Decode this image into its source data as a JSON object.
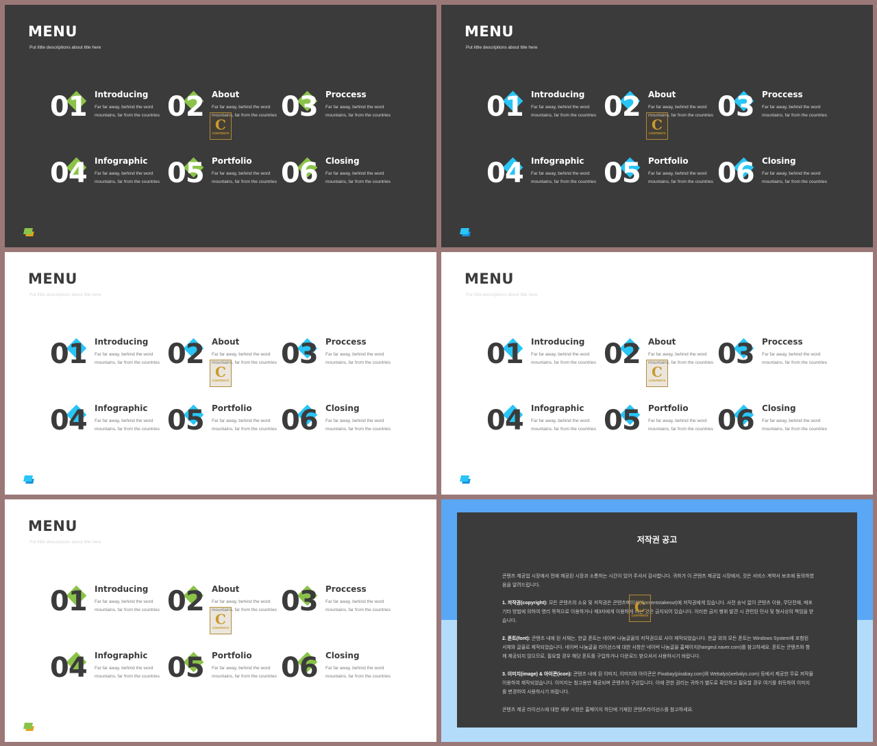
{
  "slides": [
    {
      "theme": "dark",
      "accent": "green",
      "title": "MENU",
      "subtitle": "Put little descriptions about title here",
      "items": [
        {
          "num": "01",
          "title": "Introducing",
          "desc": "Far far away, behind the word mountains, far from the countries"
        },
        {
          "num": "02",
          "title": "About",
          "desc": "Far far away, behind the word mountains, far from the countries"
        },
        {
          "num": "03",
          "title": "Proccess",
          "desc": "Far far away, behind the word mountains, far from the countries"
        },
        {
          "num": "04",
          "title": "Infographic",
          "desc": "Far far away, behind the word mountains, far from the countries"
        },
        {
          "num": "05",
          "title": "Portfolio",
          "desc": "Far far away, behind the word mountains, far from the countries"
        },
        {
          "num": "06",
          "title": "Closing",
          "desc": "Far far away, behind the word mountains, far from the countries"
        }
      ]
    },
    {
      "theme": "dark",
      "accent": "blue",
      "title": "MENU",
      "subtitle": "Put little descriptions about title here",
      "items": [
        {
          "num": "01",
          "title": "Introducing",
          "desc": "Far far away, behind the word mountains, far from the countries"
        },
        {
          "num": "02",
          "title": "About",
          "desc": "Far far away, behind the word mountains, far from the countries"
        },
        {
          "num": "03",
          "title": "Proccess",
          "desc": "Far far away, behind the word mountains, far from the countries"
        },
        {
          "num": "04",
          "title": "Infographic",
          "desc": "Far far away, behind the word mountains, far from the countries"
        },
        {
          "num": "05",
          "title": "Portfolio",
          "desc": "Far far away, behind the word mountains, far from the countries"
        },
        {
          "num": "06",
          "title": "Closing",
          "desc": "Far far away, behind the word mountains, far from the countries"
        }
      ]
    },
    {
      "theme": "light",
      "accent": "blue",
      "title": "MENU",
      "subtitle": "Put little descriptions about title here",
      "items": [
        {
          "num": "01",
          "title": "Introducing",
          "desc": "Far far away, behind the word mountains, far from the countries"
        },
        {
          "num": "02",
          "title": "About",
          "desc": "Far far away, behind the word mountains, far from the countries"
        },
        {
          "num": "03",
          "title": "Proccess",
          "desc": "Far far away, behind the word mountains, far from the countries"
        },
        {
          "num": "04",
          "title": "Infographic",
          "desc": "Far far away, behind the word mountains, far from the countries"
        },
        {
          "num": "05",
          "title": "Portfolio",
          "desc": "Far far away, behind the word mountains, far from the countries"
        },
        {
          "num": "06",
          "title": "Closing",
          "desc": "Far far away, behind the word mountains, far from the countries"
        }
      ]
    },
    {
      "theme": "light",
      "accent": "blue",
      "title": "MENU",
      "subtitle": "Put little descriptions about title here",
      "items": [
        {
          "num": "01",
          "title": "Introducing",
          "desc": "Far far away, behind the word mountains, far from the countries"
        },
        {
          "num": "02",
          "title": "About",
          "desc": "Far far away, behind the word mountains, far from the countries"
        },
        {
          "num": "03",
          "title": "Proccess",
          "desc": "Far far away, behind the word mountains, far from the countries"
        },
        {
          "num": "04",
          "title": "Infographic",
          "desc": "Far far away, behind the word mountains, far from the countries"
        },
        {
          "num": "05",
          "title": "Portfolio",
          "desc": "Far far away, behind the word mountains, far from the countries"
        },
        {
          "num": "06",
          "title": "Closing",
          "desc": "Far far away, behind the word mountains, far from the countries"
        }
      ]
    },
    {
      "theme": "light",
      "accent": "green",
      "title": "MENU",
      "subtitle": "Put little descriptions about title here",
      "items": [
        {
          "num": "01",
          "title": "Introducing",
          "desc": "Far far away, behind the word mountains, far from the countries"
        },
        {
          "num": "02",
          "title": "About",
          "desc": "Far far away, behind the word mountains, far from the countries"
        },
        {
          "num": "03",
          "title": "Proccess",
          "desc": "Far far away, behind the word mountains, far from the countries"
        },
        {
          "num": "04",
          "title": "Infographic",
          "desc": "Far far away, behind the word mountains, far from the countries"
        },
        {
          "num": "05",
          "title": "Portfolio",
          "desc": "Far far away, behind the word mountains, far from the countries"
        },
        {
          "num": "06",
          "title": "Closing",
          "desc": "Far far away, behind the word mountains, far from the countries"
        }
      ]
    }
  ],
  "watermark": {
    "letter": "C",
    "text": "CONTENTS"
  },
  "copyright": {
    "title": "저작권 공고",
    "intro": "콘텐츠 제공업 시장에서 전에 제공된 시장과 소통하는 시간이 있어 주셔서 감사합니다. 귀하가 이 콘텐츠 제공업 시장에서, 것은 서비스 계약서 보조에 동의하였음을 알려드립니다.",
    "p1_label": "1. 저작권(copyright):",
    "p1": "모든 콘텐츠의 소유 및 저작권은 콘텐츠메이커(Contentstakeout)에 저작권에게 있습니다. 사전 승낙 없이 콘텐츠 이용, 무단전재, 배포 기타 방법에 의하여 영리 목적으로 이용하거나 제3자에게 이용하게 하는 것은 금지되어 있습니다. 이러한 금지 행위 발견 시 관련된 민사 및 형사상의 책임을 받습니다.",
    "p2_label": "2. 폰트(font):",
    "p2": "콘텐츠 내에 된 서체는, 한글 폰트는 네이버 나눔글꼴의 저작권으로 사이 제작되었습니다. 한글 외의 모든 폰트는 Windows System에 포함된 서체와 글꼴로 제작되었습니다. 네이버 나눔글꼴 라이선스에 대한 사항은 네이버 나눔글꼴 홈페이지(hangeul.naver.com)를 참고하세요. 폰트는 콘텐츠와 함께 제공되지 않으므로, 필요할 경우 해당 폰트를 구입하거나 다운로드 받으셔서 사용하시기 바랍니다.",
    "p3_label": "3. 이미지(image) & 아이콘(icon):",
    "p3": "콘텐츠 내에 된 이미지, 이미지와 아이콘은 Pixabay(pixabay.com)와 Webalys(webalys.com) 등에서 제공한 무료 저작물 이용하여 제작되었습니다. 이미지는 참고용만 제공되며 콘텐츠의 구성입니다. 이에 관한 권리는 귀하가 별도로 확인하고 필요할 경우 여기를 취득하여 이미지를 변경하여 사용하시기 바랍니다.",
    "outro": "콘텐츠 제공 라이선스에 대한 세부 사항은 홈페이지 하단에 기재된 콘텐츠라이선스를 참고하세요."
  },
  "colors": {
    "green": "#8bc34a",
    "blue": "#29c5f6",
    "dark": "#3b3b3b",
    "frame": "#9b7878",
    "sky": "#5aa7f5",
    "sky_light": "#b3dcfb"
  }
}
